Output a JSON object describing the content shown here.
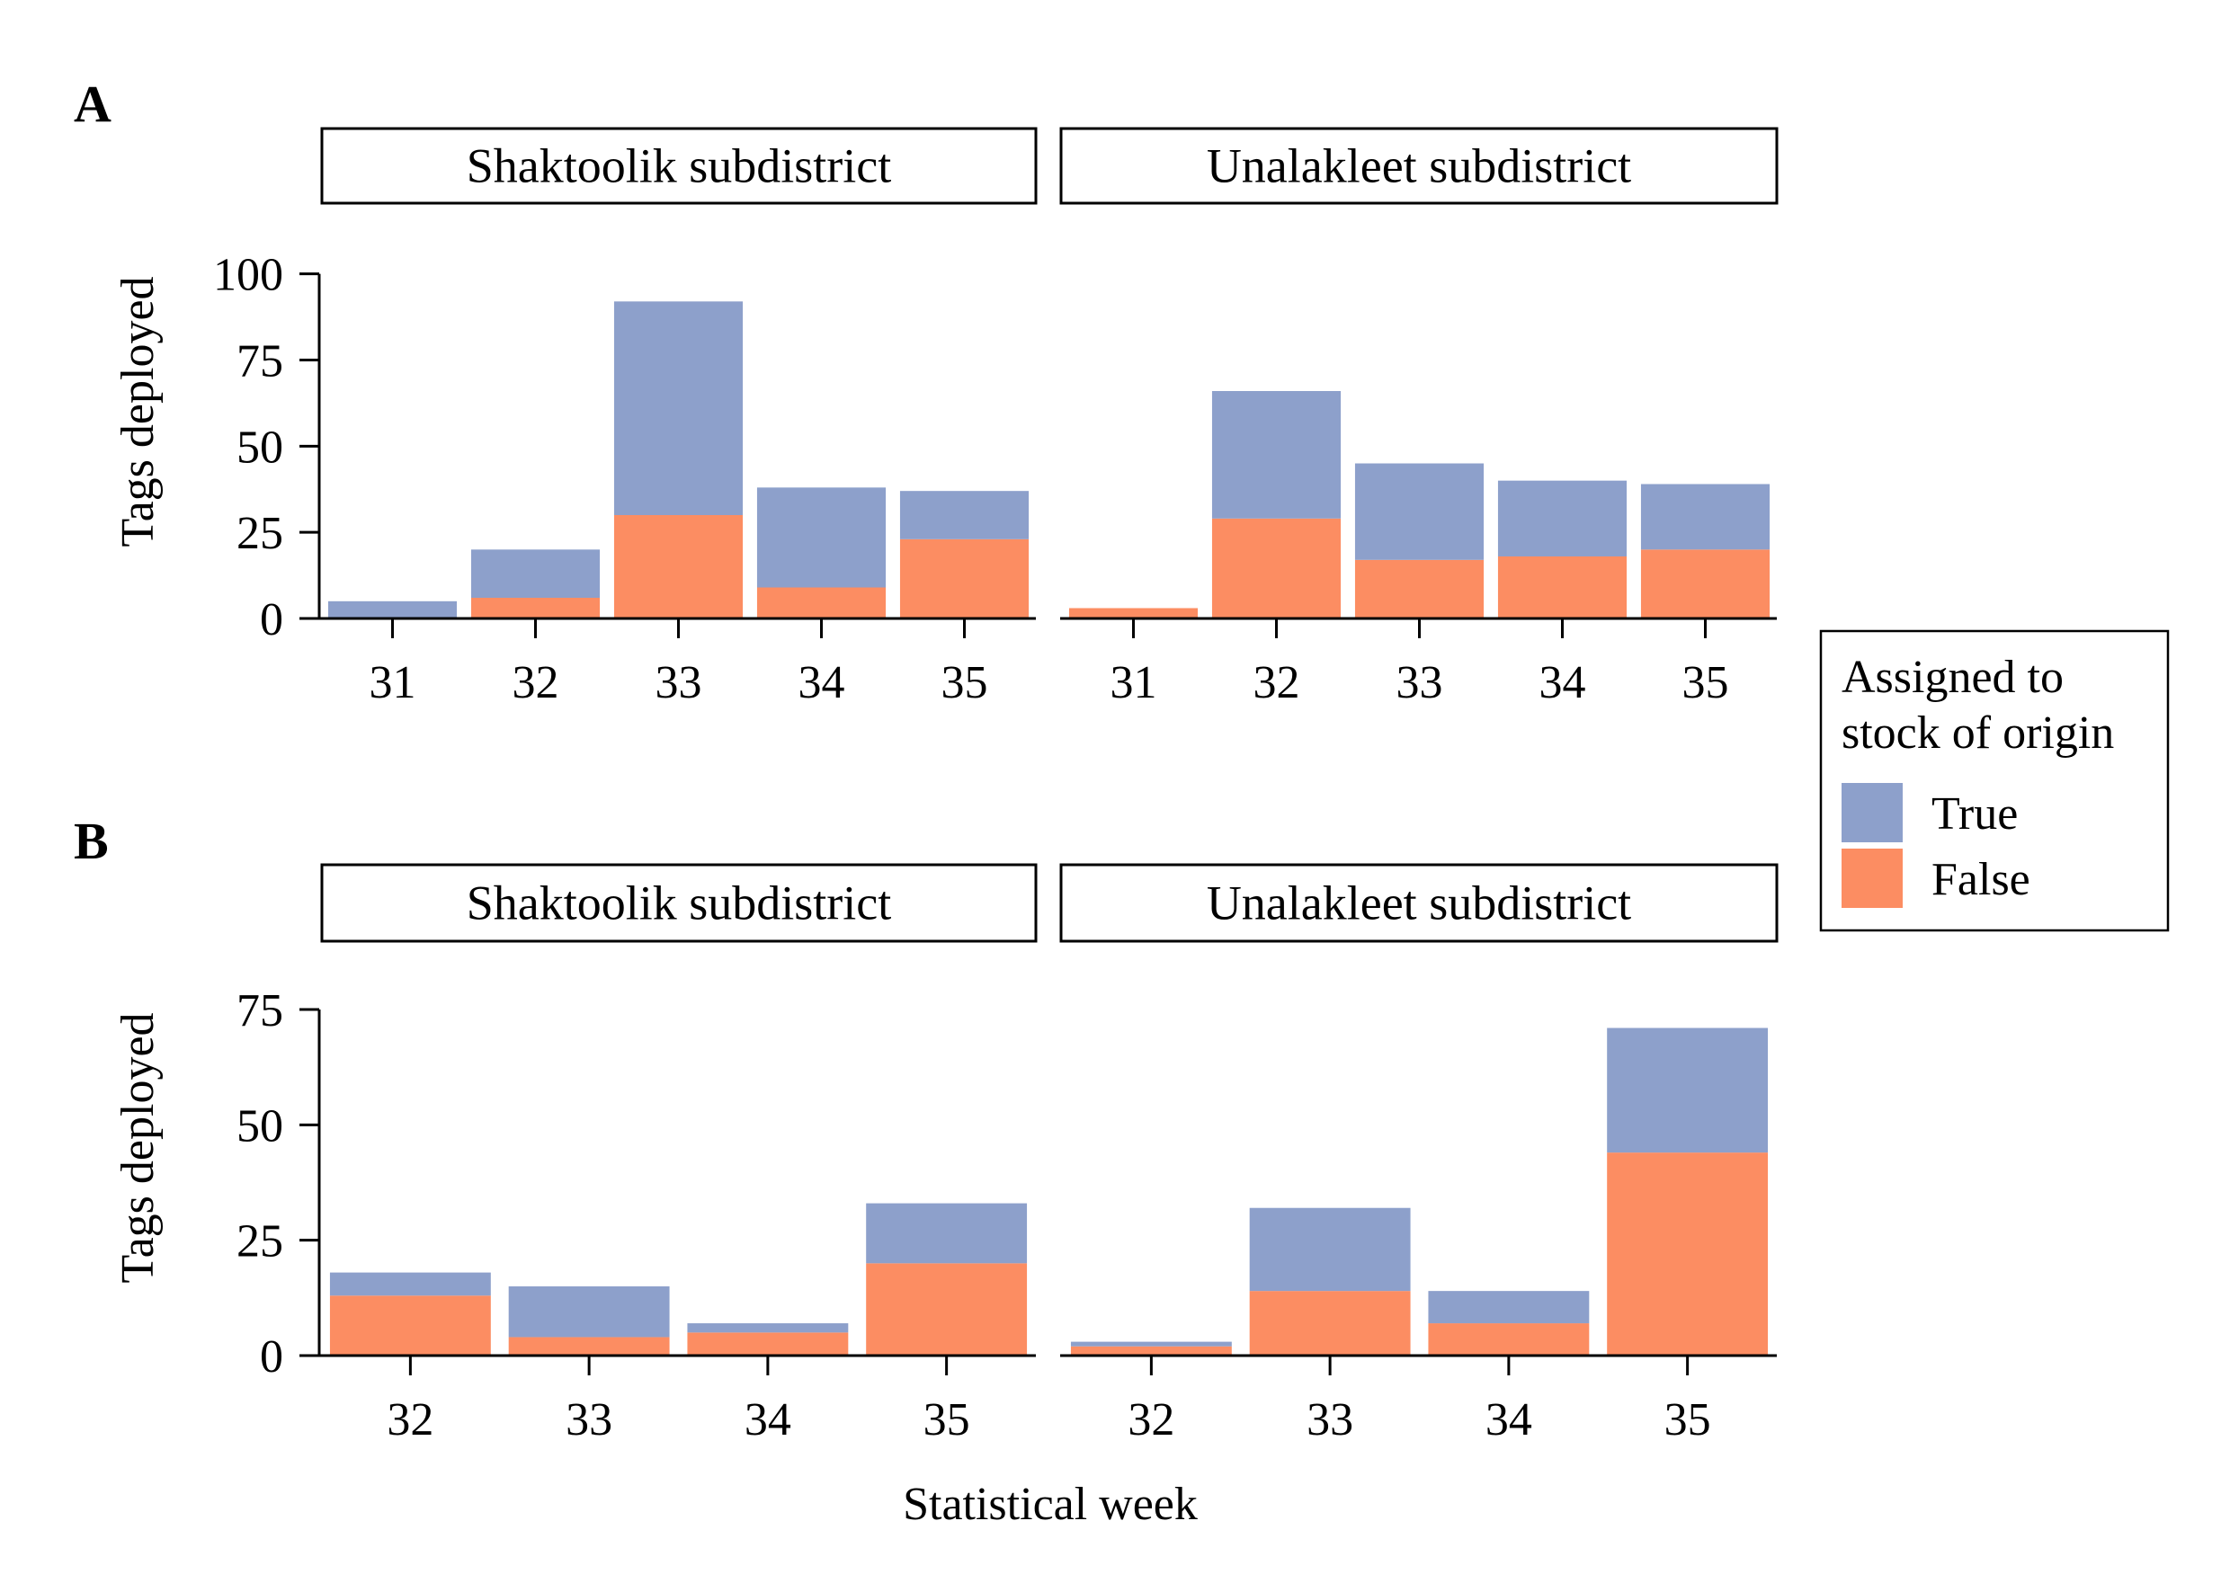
{
  "colors": {
    "true": "#8DA0CB",
    "false": "#FC8D62"
  },
  "legend": {
    "title_line1": "Assigned to",
    "title_line2": "stock of origin",
    "items": [
      {
        "label": "True",
        "key": "true"
      },
      {
        "label": "False",
        "key": "false"
      }
    ]
  },
  "xlabel": "Statistical week",
  "chart_data": [
    {
      "type": "bar",
      "stacked": true,
      "panel_label": "A",
      "ylabel": "Tags deployed",
      "ylim": [
        0,
        120
      ],
      "yticks": [
        0,
        25,
        50,
        75,
        100
      ],
      "facets": [
        {
          "title": "Shaktoolik subdistrict",
          "categories": [
            "31",
            "32",
            "33",
            "34",
            "35"
          ],
          "series": [
            {
              "name": "False",
              "key": "false",
              "values": [
                0,
                6,
                30,
                9,
                23
              ]
            },
            {
              "name": "True",
              "key": "true",
              "values": [
                5,
                14,
                62,
                29,
                14
              ]
            }
          ]
        },
        {
          "title": "Unalakleet subdistrict",
          "categories": [
            "31",
            "32",
            "33",
            "34",
            "35"
          ],
          "series": [
            {
              "name": "False",
              "key": "false",
              "values": [
                3,
                29,
                17,
                18,
                20
              ]
            },
            {
              "name": "True",
              "key": "true",
              "values": [
                0,
                37,
                28,
                22,
                19
              ]
            }
          ]
        }
      ]
    },
    {
      "type": "bar",
      "stacked": true,
      "panel_label": "B",
      "ylabel": "Tags deployed",
      "ylim": [
        0,
        90
      ],
      "yticks": [
        0,
        25,
        50,
        75
      ],
      "facets": [
        {
          "title": "Shaktoolik subdistrict",
          "categories": [
            "32",
            "33",
            "34",
            "35"
          ],
          "series": [
            {
              "name": "False",
              "key": "false",
              "values": [
                13,
                4,
                5,
                20
              ]
            },
            {
              "name": "True",
              "key": "true",
              "values": [
                5,
                11,
                2,
                13
              ]
            }
          ]
        },
        {
          "title": "Unalakleet subdistrict",
          "categories": [
            "32",
            "33",
            "34",
            "35"
          ],
          "series": [
            {
              "name": "False",
              "key": "false",
              "values": [
                2,
                14,
                7,
                44
              ]
            },
            {
              "name": "True",
              "key": "true",
              "values": [
                1,
                18,
                7,
                27
              ]
            }
          ]
        }
      ]
    }
  ]
}
